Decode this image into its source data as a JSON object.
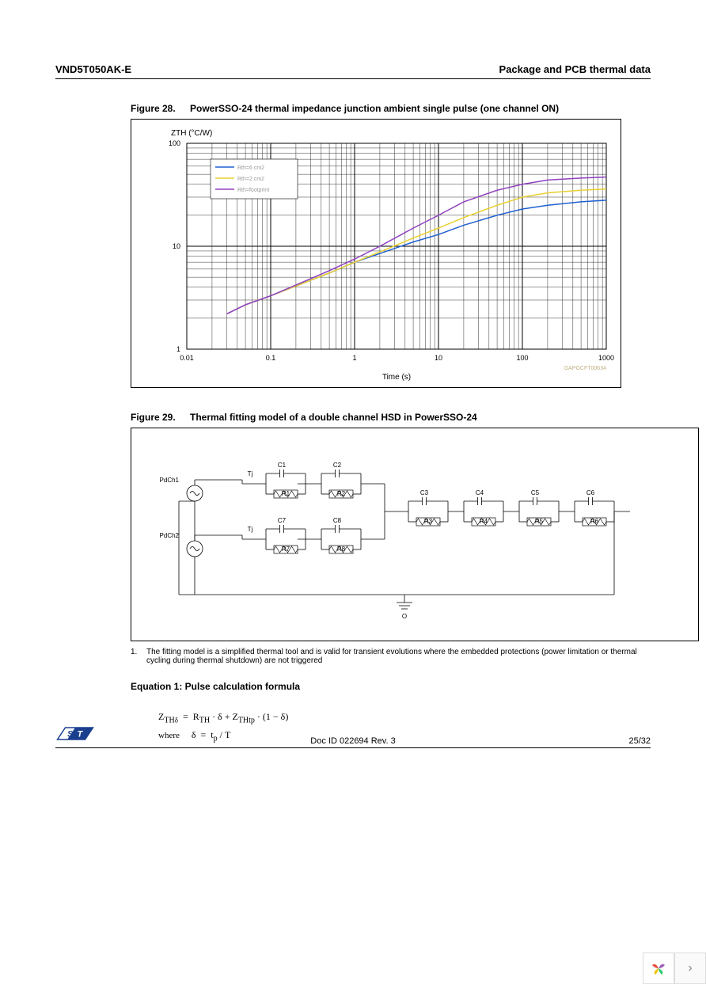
{
  "header": {
    "left": "VND5T050AK-E",
    "right": "Package and PCB thermal data"
  },
  "figure28": {
    "label": "Figure 28.",
    "caption": "PowerSSO-24 thermal impedance junction ambient single pulse (one channel ON)",
    "chart": {
      "type": "line",
      "y_label": "ZTH (°C/W)",
      "x_label": "Time (s)",
      "x_scale": "log",
      "y_scale": "log",
      "x_ticks": [
        0.01,
        0.1,
        1,
        10,
        100,
        1000
      ],
      "x_tick_labels": [
        "0.01",
        "0.1",
        "1",
        "10",
        "100",
        "1000"
      ],
      "y_ticks": [
        1,
        10,
        100
      ],
      "y_tick_labels": [
        "1",
        "10",
        "100"
      ],
      "xlim": [
        0.01,
        1000
      ],
      "ylim": [
        1,
        100
      ],
      "background_color": "#ffffff",
      "grid_color": "#000000",
      "axis_label_fontsize": 10,
      "tick_fontsize": 9,
      "legend": {
        "position": "upper-left",
        "border_color": "#000000",
        "items": [
          "Rth=6 cm2",
          "Rth=2 cm2",
          "Rth=footprint"
        ]
      },
      "series": [
        {
          "name": "Rth=6 cm2",
          "color": "#2060d0",
          "line_width": 1.5,
          "x": [
            0.03,
            0.05,
            0.1,
            0.2,
            0.5,
            1,
            2,
            5,
            10,
            20,
            50,
            100,
            200,
            500,
            1000
          ],
          "y": [
            2.2,
            2.7,
            3.3,
            4.1,
            5.5,
            7.0,
            8.5,
            11,
            13,
            16,
            20,
            23,
            25,
            27,
            28
          ]
        },
        {
          "name": "Rth=2 cm2",
          "color": "#e8d030",
          "line_width": 1.5,
          "x": [
            0.03,
            0.05,
            0.1,
            0.2,
            0.5,
            1,
            2,
            5,
            10,
            20,
            50,
            100,
            200,
            500,
            1000
          ],
          "y": [
            2.2,
            2.7,
            3.3,
            4.1,
            5.5,
            7.0,
            8.8,
            12,
            15,
            19,
            25,
            30,
            33,
            35,
            36
          ]
        },
        {
          "name": "Rth=footprint",
          "color": "#9040c0",
          "line_width": 1.5,
          "x": [
            0.03,
            0.05,
            0.1,
            0.2,
            0.5,
            1,
            2,
            5,
            10,
            20,
            50,
            100,
            200,
            500,
            1000
          ],
          "y": [
            2.2,
            2.7,
            3.3,
            4.2,
            5.8,
            7.5,
            10,
            15,
            20,
            27,
            35,
            40,
            44,
            46,
            47
          ]
        }
      ],
      "watermark": "GAPGCFT00634"
    }
  },
  "figure29": {
    "label": "Figure 29.",
    "caption": "Thermal fitting model of a double channel HSD in PowerSSO-24",
    "circuit": {
      "sources": [
        {
          "label": "PdCh1",
          "tj_label": "Tj"
        },
        {
          "label": "PdCh2",
          "tj_label": "Tj"
        }
      ],
      "top_branch": [
        {
          "c": "C1",
          "r": "R1"
        },
        {
          "c": "C2",
          "r": "R2"
        }
      ],
      "bottom_branch": [
        {
          "c": "C7",
          "r": "R7"
        },
        {
          "c": "C8",
          "r": "R8"
        }
      ],
      "shared_branch": [
        {
          "c": "C3",
          "r": "R3"
        },
        {
          "c": "C4",
          "r": "R4"
        },
        {
          "c": "C5",
          "r": "R5"
        },
        {
          "c": "C6",
          "r": "R6"
        }
      ],
      "ground_label": "O",
      "line_color": "#000000",
      "text_fontsize": 8
    }
  },
  "footnote": {
    "num": "1.",
    "text": "The fitting model is a simplified thermal tool and is valid for transient evolutions where the embedded protections (power limitation or thermal cycling during thermal shutdown) are not triggered"
  },
  "equation": {
    "title": "Equation 1: Pulse calculation formula",
    "line1": "Z_TH δ  =  R_TH · δ + Z_THtp · (1 − δ)",
    "line2_prefix": "where",
    "line2": "δ  =  t_p / T"
  },
  "footer": {
    "doc_id": "Doc ID 022694 Rev. 3",
    "page": "25/32"
  },
  "logo": {
    "fill_main": "#1b3f8f",
    "text": "ST"
  },
  "nav": {
    "next": "›"
  }
}
